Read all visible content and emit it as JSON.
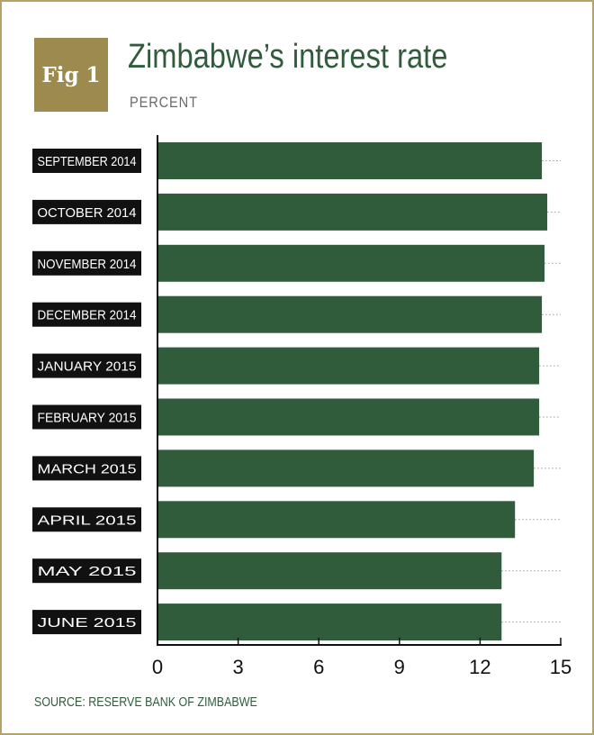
{
  "badge": "Fig 1",
  "title": "Zimbabwe’s interest rate",
  "subtitle": "PERCENT",
  "source": "SOURCE: RESERVE BANK OF ZIMBABWE",
  "colors": {
    "bar": "#305c3c",
    "label_bg": "#111111",
    "badge": "#9c8a4e",
    "frame": "#b5a16a"
  },
  "chart_data": {
    "type": "bar",
    "orientation": "horizontal",
    "categories": [
      "SEPTEMBER 2014",
      "OCTOBER 2014",
      "NOVEMBER 2014",
      "DECEMBER 2014",
      "JANUARY 2015",
      "FEBRUARY 2015",
      "MARCH 2015",
      "APRIL 2015",
      "MAY 2015",
      "JUNE 2015"
    ],
    "values": [
      14.3,
      14.5,
      14.4,
      14.3,
      14.2,
      14.2,
      14.0,
      13.3,
      12.8,
      12.8
    ],
    "xlim": [
      0,
      15
    ],
    "xticks": [
      0,
      3,
      6,
      9,
      12,
      15
    ],
    "title": "Zimbabwe’s interest rate",
    "xlabel": "PERCENT",
    "grid": "dotted guide lines at bar ends"
  }
}
